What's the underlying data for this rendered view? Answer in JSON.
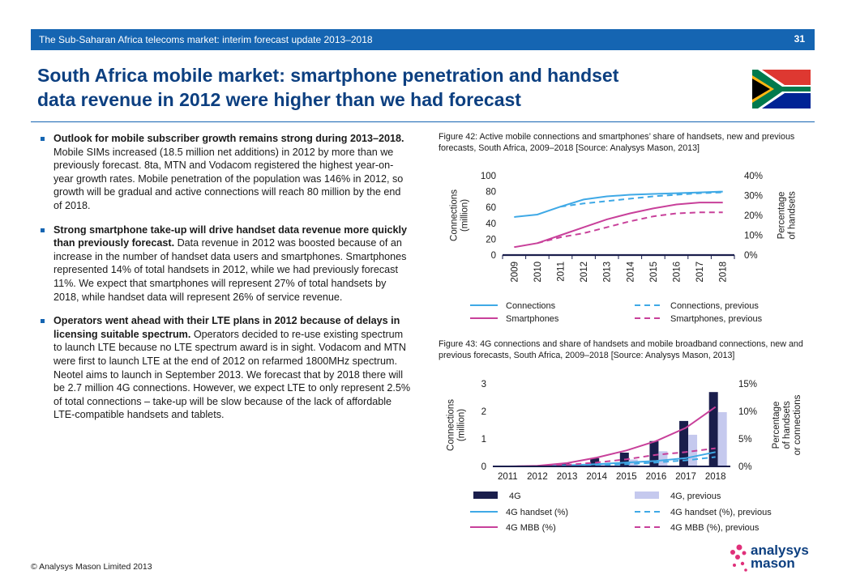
{
  "header": {
    "subtitle": "The Sub-Saharan Africa telecoms market: interim forecast update 2013–2018",
    "page_number": "31",
    "title_line1": "South Africa mobile market: smartphone penetration and handset",
    "title_line2": "data revenue in 2012 were higher than we had forecast"
  },
  "bullets": [
    {
      "lead": "Outlook for mobile subscriber growth remains strong during 2013–2018.",
      "body": "Mobile SIMs increased (18.5 million net additions) in 2012 by more than we previously forecast. 8ta, MTN and Vodacom registered the highest year-on-year growth rates. Mobile penetration of the population was 146% in 2012, so growth will be gradual and active connections will reach 80 million by the end of 2018."
    },
    {
      "lead": "Strong smartphone take-up will drive handset data revenue more quickly than previously forecast.",
      "body": "Data revenue in 2012 was boosted because of an increase in the number of handset data users and smartphones. Smartphones represented 14% of total handsets in 2012, while we had previously forecast 11%. We expect that smartphones will represent 27% of total handsets by 2018, while handset data will represent 26% of service revenue."
    },
    {
      "lead": "Operators went ahead with their LTE plans in 2012 because of delays in licensing suitable spectrum.",
      "body": "Operators decided to re-use existing spectrum to launch LTE because no LTE spectrum award is in sight. Vodacom and MTN were first to launch LTE at the end of 2012 on refarmed 1800MHz spectrum. Neotel aims to launch in September 2013. We forecast that by 2018 there will be 2.7 million 4G connections. However, we expect LTE to only represent 2.5% of total connections – take-up will be slow because of the lack of affordable LTE-compatible handsets and tablets."
    }
  ],
  "footer": "© Analysys Mason Limited 2013",
  "logo": {
    "line1": "analysys",
    "line2": "mason"
  },
  "colors": {
    "brand_blue": "#1565b2",
    "title_blue": "#0c3f80",
    "connections": "#3fa9e6",
    "smartphones": "#c8409a",
    "bar_new": "#1a1e4c",
    "bar_prev": "#c5c9ee"
  },
  "chart_data": [
    {
      "type": "line",
      "caption": "Figure 42: Active mobile connections and smartphones’ share of handsets, new and previous forecasts, South Africa, 2009–2018 [Source: Analysys Mason, 2013]",
      "x": [
        "2009",
        "2010",
        "2011",
        "2012",
        "2013",
        "2014",
        "2015",
        "2016",
        "2017",
        "2018"
      ],
      "ylabel": "Connections (million)",
      "ylabel_lines": [
        "Connections",
        "(million)"
      ],
      "y2label": "Percentage of handsets",
      "y2label_lines": [
        "Percentage",
        "of handsets"
      ],
      "ylim": [
        0,
        100
      ],
      "yticks": [
        "0",
        "20",
        "40",
        "60",
        "80",
        "100"
      ],
      "y2lim": [
        0,
        40
      ],
      "y2ticks": [
        "0%",
        "10%",
        "20%",
        "30%",
        "40%"
      ],
      "series": [
        {
          "name": "Connections",
          "axis": "left",
          "style": "solid",
          "color": "#3fa9e6",
          "values": [
            48,
            51,
            61,
            70,
            74,
            76,
            77,
            78,
            79,
            80
          ]
        },
        {
          "name": "Connections, previous",
          "axis": "left",
          "style": "dashed",
          "color": "#3fa9e6",
          "values": [
            null,
            null,
            61,
            65,
            68,
            71,
            74,
            76,
            78,
            79
          ]
        },
        {
          "name": "Smartphones",
          "axis": "right",
          "style": "solid",
          "color": "#c8409a",
          "values": [
            4,
            6,
            10,
            14,
            18,
            21,
            23.5,
            25.5,
            26.5,
            26.5
          ]
        },
        {
          "name": "Smartphones, previous",
          "axis": "right",
          "style": "dashed",
          "color": "#c8409a",
          "values": [
            null,
            6,
            9,
            11,
            14,
            17,
            19.5,
            21,
            21.5,
            21.5
          ]
        }
      ]
    },
    {
      "type": "bar",
      "caption": "Figure 43: 4G connections and share of handsets and mobile broadband connections, new and previous forecasts, South Africa, 2009–2018 [Source: Analysys Mason, 2013]",
      "categories": [
        "2011",
        "2012",
        "2013",
        "2014",
        "2015",
        "2016",
        "2017",
        "2018"
      ],
      "ylabel": "Connections (million)",
      "ylabel_lines": [
        "Connections",
        "(million)"
      ],
      "y2label": "Percentage of handsets or connections",
      "y2label_lines": [
        "Percentage",
        "of handsets",
        "or connections"
      ],
      "ylim": [
        0,
        3
      ],
      "yticks": [
        "0",
        "1",
        "2",
        "3"
      ],
      "y2lim": [
        0,
        15
      ],
      "y2ticks": [
        "0%",
        "5%",
        "10%",
        "15%"
      ],
      "bar_series": [
        {
          "name": "4G",
          "color": "#1a1e4c",
          "values": [
            0,
            0.02,
            0.12,
            0.3,
            0.5,
            0.92,
            1.65,
            2.7
          ]
        },
        {
          "name": "4G, previous",
          "color": "#c5c9ee",
          "values": [
            0,
            0.01,
            0.05,
            0.12,
            0.25,
            0.55,
            1.15,
            1.97
          ]
        }
      ],
      "line_series": [
        {
          "name": "4G handset  (%)",
          "style": "solid",
          "color": "#3fa9e6",
          "values": [
            0,
            0,
            0.2,
            0.4,
            0.7,
            1.0,
            1.5,
            2.6
          ]
        },
        {
          "name": "4G handset  (%), previous",
          "style": "dashed",
          "color": "#3fa9e6",
          "values": [
            0,
            0,
            0.1,
            0.2,
            0.4,
            0.7,
            1.1,
            1.7
          ]
        },
        {
          "name": "4G MBB (%)",
          "style": "solid",
          "color": "#c8409a",
          "values": [
            0,
            0.1,
            0.6,
            1.6,
            2.9,
            4.6,
            7.0,
            10.8
          ]
        },
        {
          "name": "4G MBB (%), previous",
          "style": "dashed",
          "color": "#c8409a",
          "values": [
            0,
            0.05,
            0.3,
            0.7,
            1.3,
            2.1,
            2.6,
            3.3
          ]
        }
      ]
    }
  ]
}
